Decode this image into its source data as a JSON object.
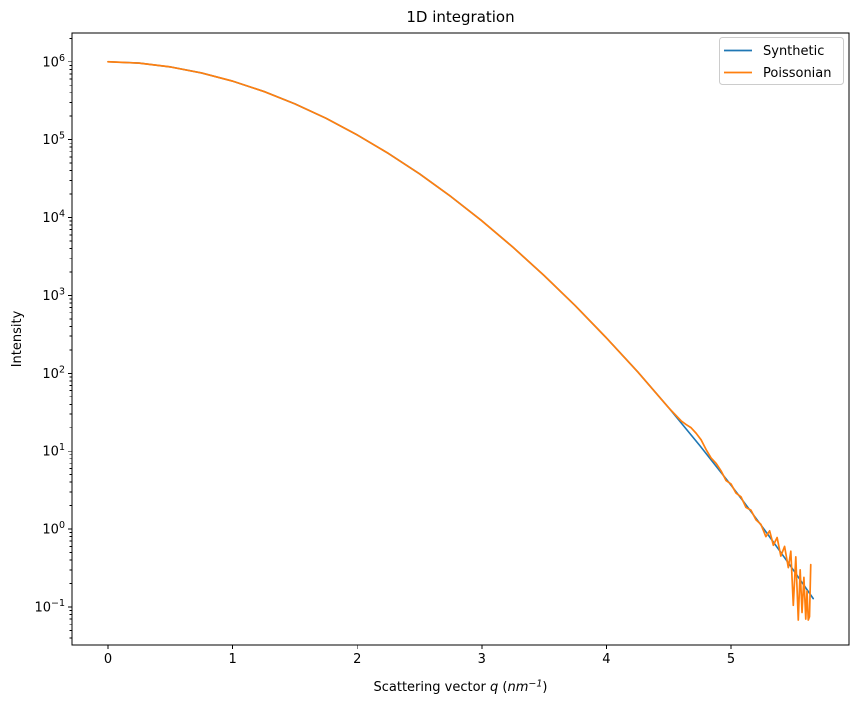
{
  "chart_data": {
    "type": "line",
    "title": "1D integration",
    "xlabel": "Scattering vector q (nm⁻¹)",
    "xlabel_runs": [
      {
        "t": "Scattering vector ",
        "italic": false,
        "sup": false
      },
      {
        "t": "q",
        "italic": true,
        "sup": false
      },
      {
        "t": " (",
        "italic": false,
        "sup": false
      },
      {
        "t": "nm",
        "italic": true,
        "sup": false
      },
      {
        "t": "−1",
        "italic": true,
        "sup": true
      },
      {
        "t": ")",
        "italic": false,
        "sup": false
      }
    ],
    "ylabel": "Intensity",
    "xscale": "linear",
    "yscale": "log",
    "xlim": [
      -0.289,
      5.947
    ],
    "ylim": [
      0.0325,
      2340000
    ],
    "grid": false,
    "legend_position": "upper right",
    "x_ticks": [
      {
        "value": 0,
        "label": "0"
      },
      {
        "value": 1,
        "label": "1"
      },
      {
        "value": 2,
        "label": "2"
      },
      {
        "value": 3,
        "label": "3"
      },
      {
        "value": 4,
        "label": "4"
      },
      {
        "value": 5,
        "label": "5"
      }
    ],
    "y_ticks": [
      {
        "value": 1000000,
        "base": "10",
        "exp": "6"
      },
      {
        "value": 100000,
        "base": "10",
        "exp": "5"
      },
      {
        "value": 10000,
        "base": "10",
        "exp": "4"
      },
      {
        "value": 1000,
        "base": "10",
        "exp": "3"
      },
      {
        "value": 100,
        "base": "10",
        "exp": "2"
      },
      {
        "value": 10,
        "base": "10",
        "exp": "1"
      },
      {
        "value": 1,
        "base": "10",
        "exp": "0"
      },
      {
        "value": 0.1,
        "base": "10",
        "exp": "−1"
      }
    ],
    "series": [
      {
        "name": "Synthetic",
        "color": "#1f77b4",
        "linewidth": 1.6,
        "x": [
          0,
          0.25,
          0.5,
          0.75,
          1,
          1.25,
          1.5,
          1.75,
          2,
          2.25,
          2.5,
          2.75,
          3,
          3.25,
          3.5,
          3.75,
          4,
          4.25,
          4.5,
          4.75,
          5,
          5.1,
          5.2,
          5.3,
          5.4,
          5.5,
          5.6,
          5.66
        ],
        "y": [
          1000000,
          961000,
          859000,
          719000,
          564000,
          416000,
          288000,
          188000,
          115000,
          66600,
          36400,
          18700,
          9080,
          4160,
          1800,
          738,
          285,
          105,
          36.1,
          11.8,
          3.67,
          2.26,
          1.38,
          0.836,
          0.501,
          0.299,
          0.176,
          0.128
        ]
      },
      {
        "name": "Poissonian",
        "color": "#ff7f0e",
        "linewidth": 1.7,
        "x": [
          0,
          0.25,
          0.5,
          0.75,
          1,
          1.25,
          1.5,
          1.75,
          2,
          2.25,
          2.5,
          2.75,
          3,
          3.25,
          3.5,
          3.75,
          4,
          4.25,
          4.5,
          4.6,
          4.64,
          4.68,
          4.72,
          4.76,
          4.8,
          4.84,
          4.88,
          4.92,
          4.96,
          5.0,
          5.04,
          5.08,
          5.12,
          5.16,
          5.2,
          5.24,
          5.28,
          5.31,
          5.34,
          5.37,
          5.4,
          5.43,
          5.46,
          5.48,
          5.5,
          5.52,
          5.54,
          5.555,
          5.57,
          5.585,
          5.6,
          5.61,
          5.62,
          5.63,
          5.64
        ],
        "y": [
          1000000,
          961000,
          859000,
          719000,
          564000,
          416000,
          288000,
          188000,
          115000,
          66600,
          36400,
          18700,
          9080,
          4160,
          1800,
          738,
          285,
          105,
          36.1,
          24.5,
          22,
          20,
          17,
          14,
          10.5,
          8.2,
          7.0,
          5.6,
          4.2,
          3.8,
          2.9,
          2.6,
          1.9,
          1.75,
          1.32,
          1.15,
          0.8,
          0.95,
          0.62,
          0.78,
          0.45,
          0.6,
          0.32,
          0.52,
          0.105,
          0.44,
          0.068,
          0.3,
          0.085,
          0.24,
          0.07,
          0.16,
          0.068,
          0.075,
          0.35
        ]
      }
    ]
  }
}
